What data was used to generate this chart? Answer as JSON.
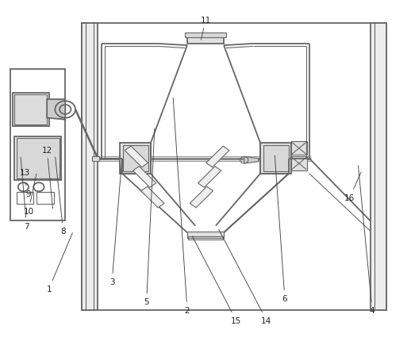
{
  "bg_color": "#ffffff",
  "line_color": "#666666",
  "line_width": 1.3,
  "thin_line": 0.8,
  "fig_width": 5.18,
  "fig_height": 4.31,
  "labels": {
    "1": {
      "text": [
        0.115,
        0.148
      ],
      "point": [
        0.175,
        0.32
      ]
    },
    "2": {
      "text": [
        0.455,
        0.085
      ],
      "point": [
        0.42,
        0.72
      ]
    },
    "3": {
      "text": [
        0.27,
        0.17
      ],
      "point": [
        0.295,
        0.54
      ]
    },
    "4": {
      "text": [
        0.91,
        0.085
      ],
      "point": [
        0.875,
        0.52
      ]
    },
    "5": {
      "text": [
        0.355,
        0.11
      ],
      "point": [
        0.375,
        0.63
      ]
    },
    "6": {
      "text": [
        0.695,
        0.12
      ],
      "point": [
        0.67,
        0.55
      ]
    },
    "7": {
      "text": [
        0.06,
        0.335
      ],
      "point": [
        0.045,
        0.545
      ]
    },
    "8": {
      "text": [
        0.15,
        0.32
      ],
      "point": [
        0.13,
        0.545
      ]
    },
    "9": {
      "text": [
        0.065,
        0.43
      ],
      "point": [
        0.055,
        0.47
      ]
    },
    "10": {
      "text": [
        0.065,
        0.38
      ],
      "point": [
        0.085,
        0.495
      ]
    },
    "11": {
      "text": [
        0.5,
        0.945
      ],
      "point": [
        0.488,
        0.88
      ]
    },
    "12": {
      "text": [
        0.11,
        0.56
      ],
      "point": [
        0.125,
        0.38
      ]
    },
    "13": {
      "text": [
        0.055,
        0.495
      ],
      "point": [
        0.04,
        0.465
      ]
    },
    "14": {
      "text": [
        0.65,
        0.055
      ],
      "point": [
        0.53,
        0.33
      ]
    },
    "15": {
      "text": [
        0.575,
        0.055
      ],
      "point": [
        0.465,
        0.31
      ]
    },
    "16": {
      "text": [
        0.855,
        0.42
      ],
      "point": [
        0.885,
        0.5
      ]
    }
  }
}
